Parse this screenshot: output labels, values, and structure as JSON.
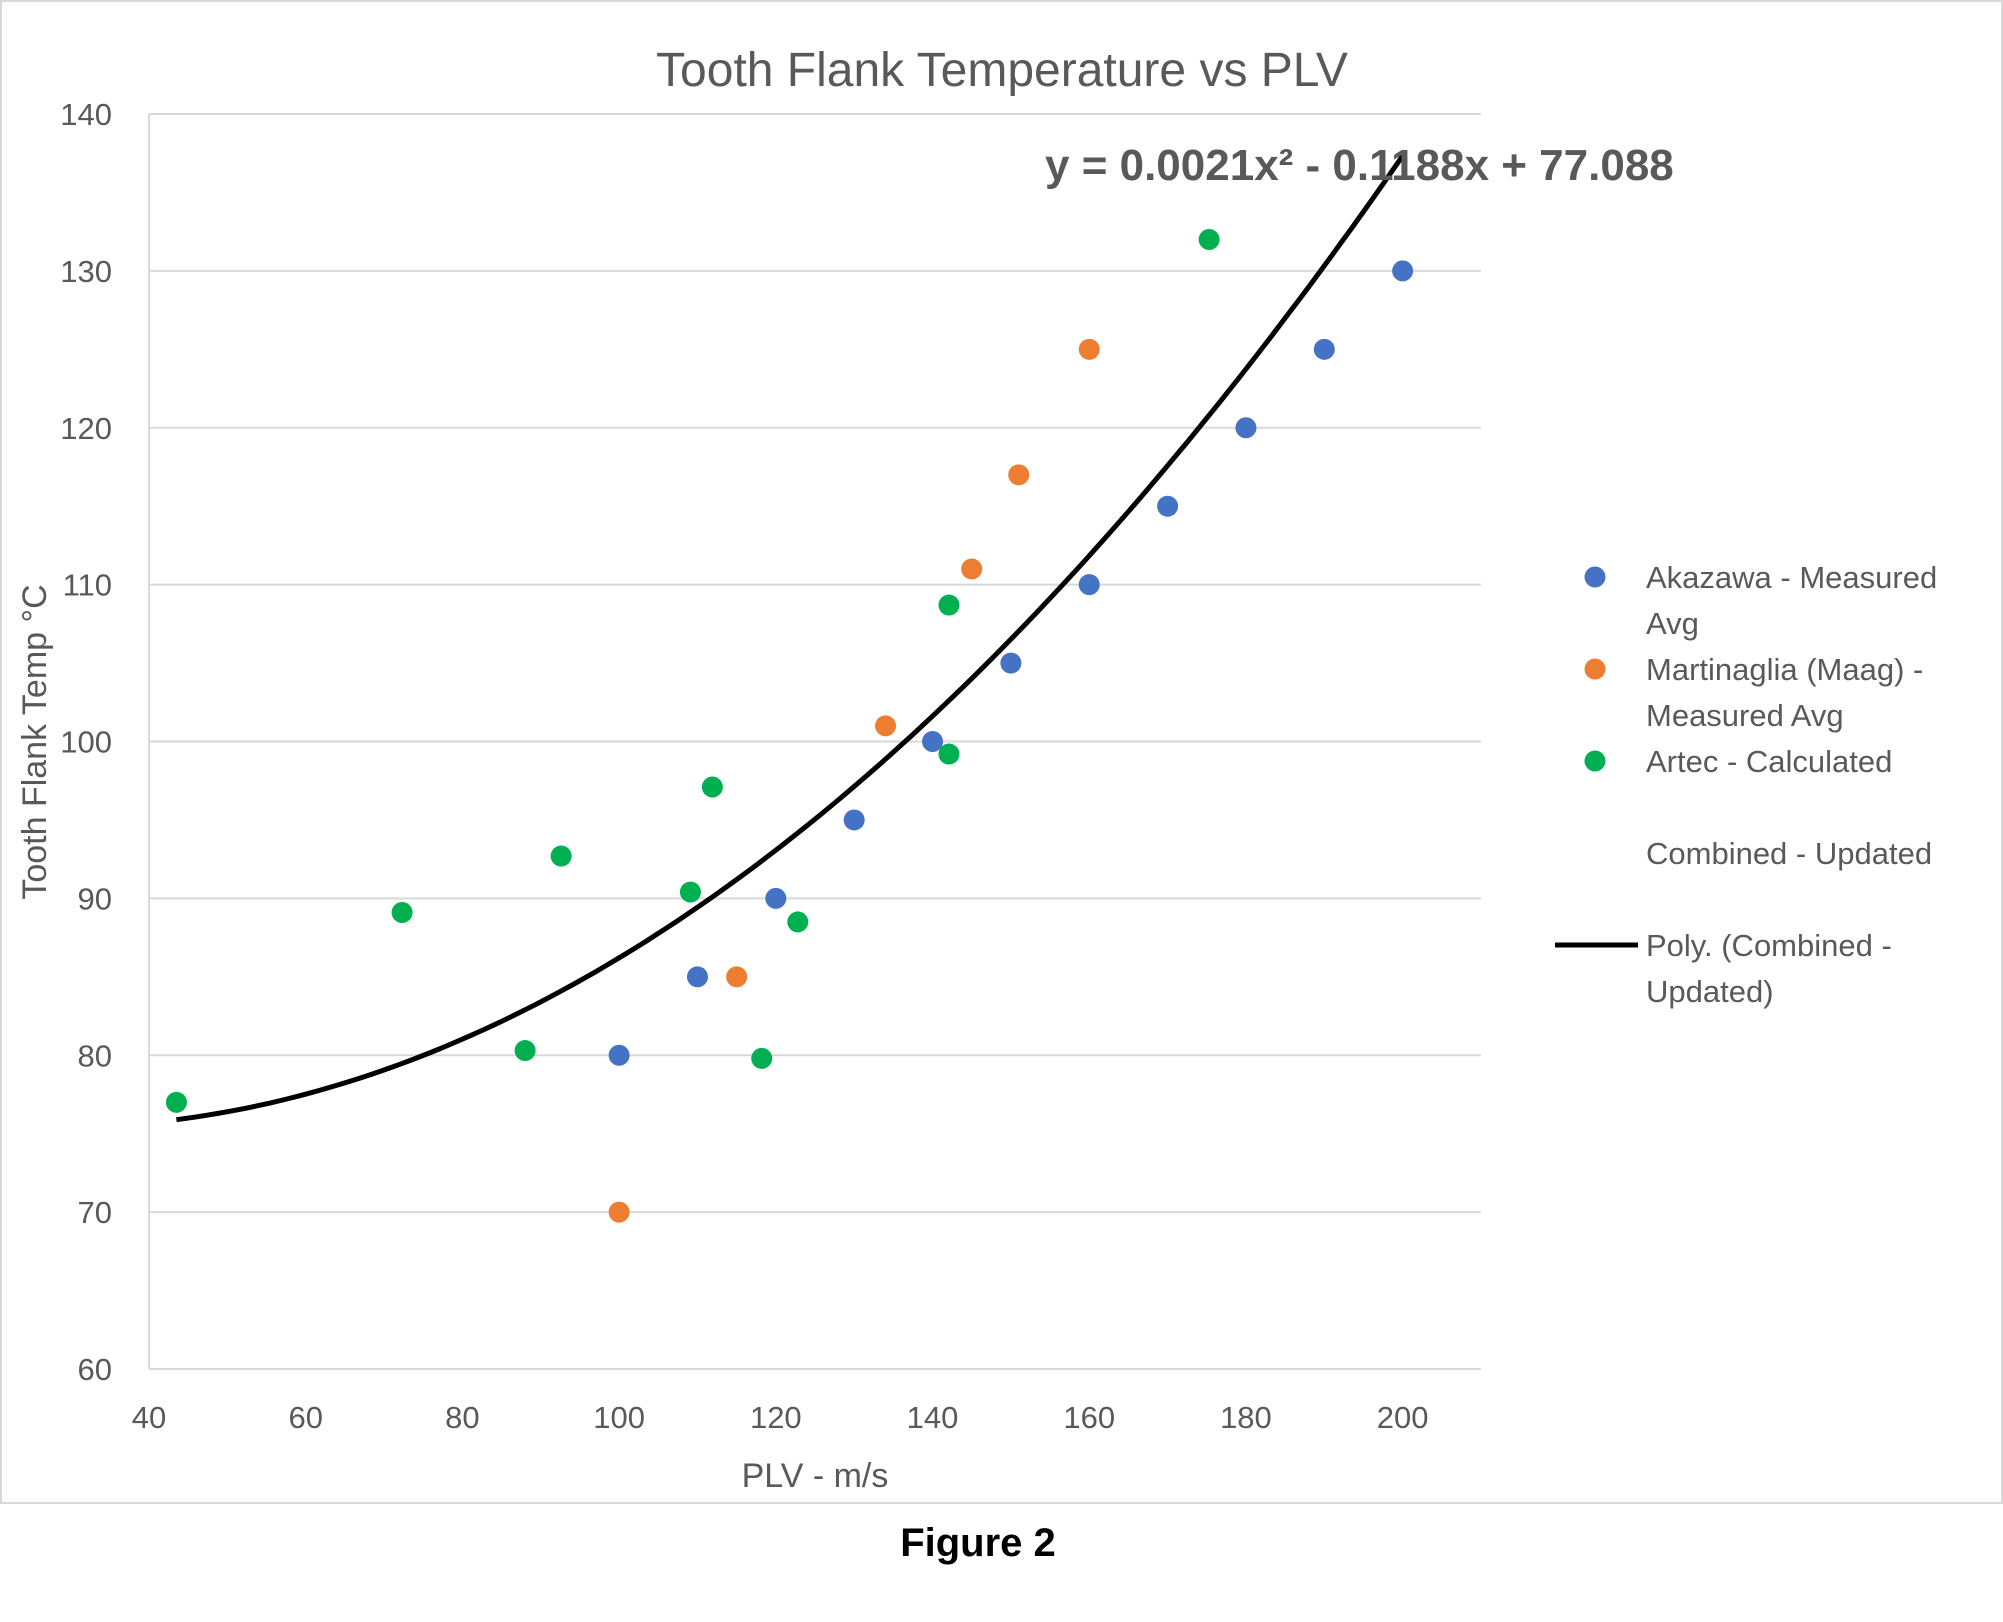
{
  "caption": "Figure 2",
  "chart_data": {
    "type": "scatter",
    "title": "Tooth Flank Temperature vs PLV",
    "xlabel": "PLV - m/s",
    "ylabel": "Tooth Flank Temp °C",
    "xlim": [
      40,
      210
    ],
    "ylim": [
      60,
      140
    ],
    "xticks": [
      40,
      60,
      80,
      100,
      120,
      140,
      160,
      180,
      200
    ],
    "yticks": [
      60,
      70,
      80,
      90,
      100,
      110,
      120,
      130,
      140
    ],
    "grid": "horizontal",
    "legend_position": "right",
    "series": [
      {
        "name": "Akazawa - Measured Avg",
        "legend_lines": [
          "Akazawa - Measured",
          "Avg"
        ],
        "color": "#4472C4",
        "marker": "circle",
        "points": [
          [
            100,
            80
          ],
          [
            110,
            85
          ],
          [
            120,
            90
          ],
          [
            130,
            95
          ],
          [
            140,
            100
          ],
          [
            150,
            105
          ],
          [
            160,
            110
          ],
          [
            170,
            115
          ],
          [
            180,
            120
          ],
          [
            190,
            125
          ],
          [
            200,
            130
          ]
        ]
      },
      {
        "name": "Martinaglia (Maag) - Measured Avg",
        "legend_lines": [
          "Martinaglia (Maag) -",
          "Measured Avg"
        ],
        "color": "#ED7D31",
        "marker": "circle",
        "points": [
          [
            100,
            70
          ],
          [
            115,
            85
          ],
          [
            134,
            101
          ],
          [
            145,
            111
          ],
          [
            151,
            117
          ],
          [
            160,
            125
          ]
        ]
      },
      {
        "name": "Artec - Calculated",
        "legend_lines": [
          "Artec - Calculated"
        ],
        "color": "#00B050",
        "marker": "circle",
        "points": [
          [
            43.5,
            77
          ],
          [
            72.3,
            89.1
          ],
          [
            88,
            80.3
          ],
          [
            92.6,
            92.7
          ],
          [
            109.1,
            90.4
          ],
          [
            111.9,
            97.1
          ],
          [
            118.2,
            79.8
          ],
          [
            122.8,
            88.5
          ],
          [
            142.1,
            108.7
          ],
          [
            142.1,
            99.2
          ],
          [
            175.3,
            132
          ]
        ]
      },
      {
        "name": "Combined - Updated",
        "legend_lines": [
          "Combined - Updated"
        ],
        "color": "#ffffff",
        "marker": "none",
        "points": []
      }
    ],
    "trendline": {
      "name": "Poly. (Combined - Updated)",
      "legend_lines": [
        "Poly. (Combined -",
        "Updated)"
      ],
      "type": "polynomial",
      "coefficients": [
        0.0021,
        -0.1188,
        77.088
      ],
      "x_range": [
        43.5,
        200
      ],
      "color": "#000000",
      "equation_label": "y = 0.0021x² - 0.1188x + 77.088"
    }
  }
}
